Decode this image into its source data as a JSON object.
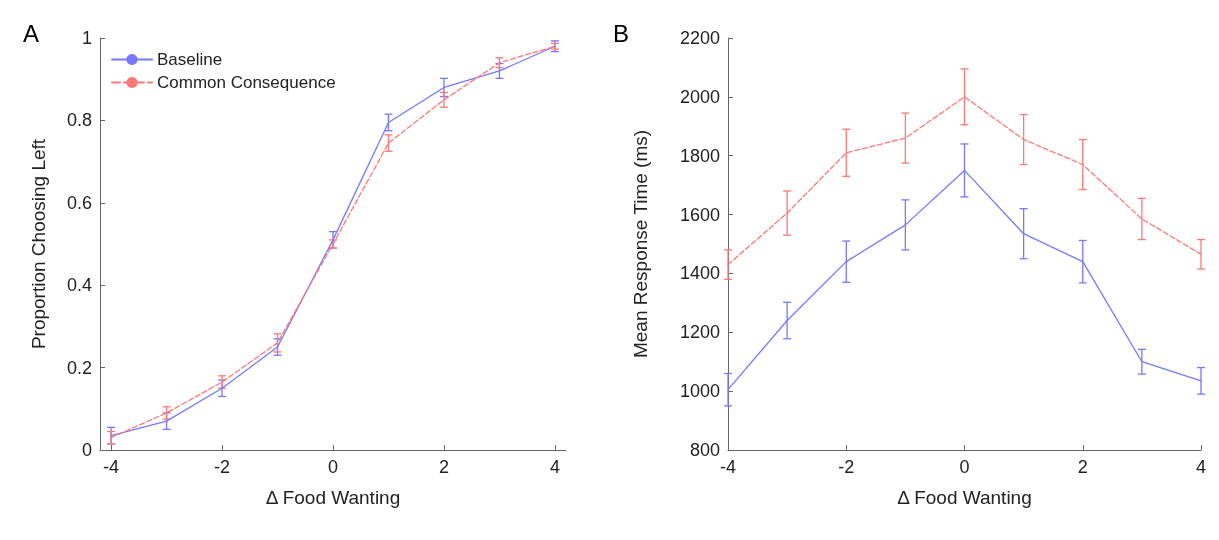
{
  "chart_data": [
    {
      "type": "line",
      "title": "A",
      "xlabel": "Δ Food Wanting",
      "ylabel": "Proportion Choosing Left",
      "x": [
        -4,
        -3,
        -2,
        -1,
        0,
        1,
        2,
        3,
        4
      ],
      "xlim": [
        -4.2,
        4.2
      ],
      "xticks": [
        -4,
        -2,
        0,
        2,
        4
      ],
      "ylim": [
        0,
        1
      ],
      "yticks": [
        0,
        0.2,
        0.4,
        0.6,
        0.8,
        1
      ],
      "grid": false,
      "legend": "top left",
      "marker": "none",
      "series": [
        {
          "name": "Baseline",
          "color": "#7777ff",
          "line_style": "solid",
          "values": [
            0.035,
            0.07,
            0.15,
            0.25,
            0.51,
            0.795,
            0.88,
            0.92,
            0.98
          ],
          "errors": [
            0.02,
            0.02,
            0.02,
            0.02,
            0.02,
            0.02,
            0.022,
            0.018,
            0.013
          ]
        },
        {
          "name": "Common Consequence",
          "color": "#ff7777",
          "line_style": "dashed",
          "values": [
            0.03,
            0.09,
            0.165,
            0.26,
            0.5,
            0.745,
            0.85,
            0.94,
            0.98
          ],
          "errors": [
            0.015,
            0.015,
            0.015,
            0.022,
            0.01,
            0.02,
            0.018,
            0.012,
            0.007
          ]
        }
      ]
    },
    {
      "type": "line",
      "title": "B",
      "xlabel": "Δ Food Wanting",
      "ylabel": "Mean Response Time (ms)",
      "x": [
        -4,
        -3,
        -2,
        -1,
        0,
        1,
        2,
        3,
        4
      ],
      "xlim": [
        -4,
        4
      ],
      "xticks": [
        -4,
        -2,
        0,
        2,
        4
      ],
      "ylim": [
        800,
        2200
      ],
      "yticks": [
        800,
        1000,
        1200,
        1400,
        1600,
        1800,
        2000,
        2200
      ],
      "grid": false,
      "legend": false,
      "marker": "none",
      "series": [
        {
          "color": "#7777ff",
          "line_style": "solid",
          "values": [
            1005,
            1240,
            1440,
            1565,
            1750,
            1535,
            1440,
            1100,
            1035
          ],
          "errors": [
            55,
            62,
            70,
            85,
            90,
            85,
            72,
            42,
            45
          ]
        },
        {
          "color": "#ff7777",
          "line_style": "dashed",
          "values": [
            1430,
            1605,
            1810,
            1860,
            2000,
            1855,
            1770,
            1585,
            1465
          ],
          "errors": [
            50,
            75,
            80,
            85,
            95,
            85,
            85,
            70,
            50
          ]
        }
      ]
    }
  ]
}
